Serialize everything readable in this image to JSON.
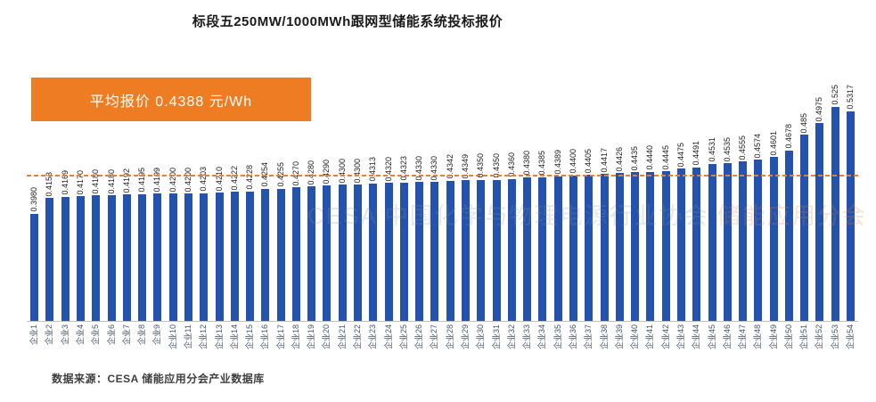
{
  "title": "标段五250MW/1000MWh跟网型储能系统投标报价",
  "average_banner": {
    "label": "平均报价 0.4388 元/Wh"
  },
  "watermark": {
    "gray": "CESA 中国化学与物理电源行业协会",
    "orange": "储能应用分会"
  },
  "source": "数据来源：CESA 储能应用分会产业数据库",
  "colors": {
    "bar": "#2353ae",
    "accent": "#ed7d31",
    "axis_label": "#44546a",
    "banner_bg": "#ee7c22"
  },
  "chart_data": {
    "type": "bar",
    "title": "标段五250MW/1000MWh跟网型储能系统投标报价",
    "unit": "元/Wh",
    "categories": [
      "企业1",
      "企业2",
      "企业3",
      "企业4",
      "企业5",
      "企业6",
      "企业7",
      "企业8",
      "企业9",
      "企业10",
      "企业11",
      "企业12",
      "企业13",
      "企业14",
      "企业15",
      "企业16",
      "企业17",
      "企业18",
      "企业19",
      "企业20",
      "企业21",
      "企业22",
      "企业23",
      "企业24",
      "企业25",
      "企业26",
      "企业27",
      "企业28",
      "企业29",
      "企业30",
      "企业31",
      "企业32",
      "企业33",
      "企业34",
      "企业35",
      "企业36",
      "企业37",
      "企业38",
      "企业39",
      "企业40",
      "企业41",
      "企业42",
      "企业43",
      "企业44",
      "企业45",
      "企业46",
      "企业47",
      "企业48",
      "企业49",
      "企业50",
      "企业51",
      "企业52",
      "企业53",
      "企业54"
    ],
    "values": [
      0.398,
      0.4153,
      0.4169,
      0.417,
      0.418,
      0.418,
      0.4192,
      0.4195,
      0.4199,
      0.42,
      0.42,
      0.4203,
      0.421,
      0.4222,
      0.4228,
      0.4254,
      0.4255,
      0.427,
      0.428,
      0.429,
      0.43,
      0.43,
      0.4313,
      0.432,
      0.4323,
      0.433,
      0.433,
      0.4342,
      0.4349,
      0.435,
      0.435,
      0.436,
      0.438,
      0.4385,
      0.4389,
      0.44,
      0.4405,
      0.4417,
      0.4426,
      0.4435,
      0.444,
      0.4445,
      0.4475,
      0.4491,
      0.4531,
      0.4535,
      0.4555,
      0.4574,
      0.4601,
      0.4678,
      0.485,
      0.4975,
      0.525,
      0.5317
    ],
    "value_labels": [
      "0.3980",
      "0.4153",
      "0.4169",
      "0.4170",
      "0.4180",
      "0.4180",
      "0.4192",
      "0.4195",
      "0.4199",
      "0.4200",
      "0.4200",
      "0.4203",
      "0.4210",
      "0.4222",
      "0.4228",
      "0.4254",
      "0.4255",
      "0.4270",
      "0.4280",
      "0.4290",
      "0.4300",
      "0.4300",
      "0.4313",
      "0.4320",
      "0.4323",
      "0.4330",
      "0.4330",
      "0.4342",
      "0.4349",
      "0.4350",
      "0.4350",
      "0.4360",
      "0.4380",
      "0.4385",
      "0.4389",
      "0.4400",
      "0.4405",
      "0.4417",
      "0.4426",
      "0.4435",
      "0.4440",
      "0.4445",
      "0.4475",
      "0.4491",
      "0.4531",
      "0.4535",
      "0.4555",
      "0.4574",
      "0.4601",
      "0.4678",
      "0.485",
      "0.4975",
      "0.525",
      "0.5317"
    ],
    "average": 0.4388,
    "average_label": "平均报价 0.4388 元/Wh",
    "xlabel": "",
    "ylabel": "",
    "ylim": [
      0.28,
      0.54
    ],
    "grid": false,
    "legend": false
  }
}
